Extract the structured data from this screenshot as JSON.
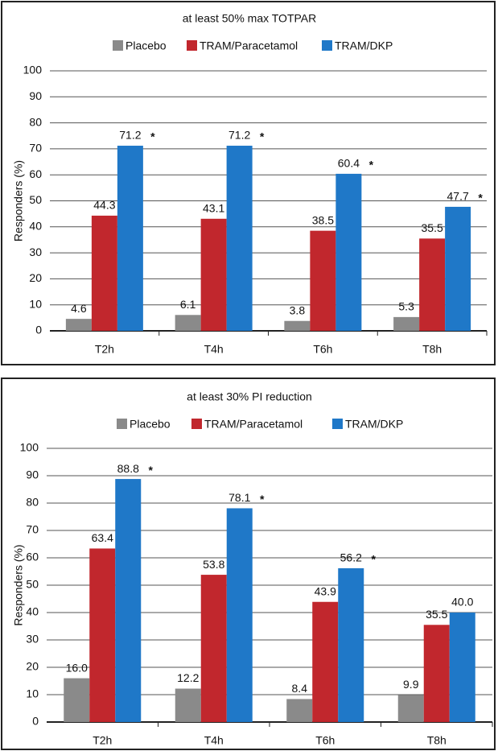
{
  "chart_data": [
    {
      "type": "bar",
      "title": "at least 50% max TOTPAR",
      "y_label": "Responders (%)",
      "categories": [
        "T2h",
        "T4h",
        "T6h",
        "T8h"
      ],
      "series": [
        {
          "name": "Placebo",
          "color": "#8a8a8a",
          "values": [
            4.6,
            6.1,
            3.8,
            5.3
          ]
        },
        {
          "name": "TRAM/Paracetamol",
          "color": "#c1272d",
          "values": [
            44.3,
            43.1,
            38.5,
            35.5
          ]
        },
        {
          "name": "TRAM/DKP",
          "color": "#1f78c8",
          "values": [
            71.2,
            71.2,
            60.4,
            47.7
          ],
          "significance": [
            "*",
            "*",
            "*",
            "*"
          ]
        }
      ],
      "ylim": [
        0,
        100
      ],
      "yticks": [
        0,
        10,
        20,
        30,
        40,
        50,
        60,
        70,
        80,
        90,
        100
      ],
      "grid": true
    },
    {
      "type": "bar",
      "title": "at least 30% PI reduction",
      "y_label": "Responders (%)",
      "categories": [
        "T2h",
        "T4h",
        "T6h",
        "T8h"
      ],
      "series": [
        {
          "name": "Placebo",
          "color": "#8a8a8a",
          "values": [
            16.0,
            12.2,
            8.4,
            9.9
          ],
          "value_labels": [
            "16.0",
            "12.2",
            "8.4",
            "9.9"
          ]
        },
        {
          "name": "TRAM/Paracetamol",
          "color": "#c1272d",
          "values": [
            63.4,
            53.8,
            43.9,
            35.5
          ]
        },
        {
          "name": "TRAM/DKP",
          "color": "#1f78c8",
          "values": [
            88.8,
            78.1,
            56.2,
            40.0
          ],
          "value_labels": [
            "88.8",
            "78.1",
            "56.2",
            "40.0"
          ],
          "significance": [
            "*",
            "*",
            "*",
            null
          ]
        }
      ],
      "ylim": [
        0,
        100
      ],
      "yticks": [
        0,
        10,
        20,
        30,
        40,
        50,
        60,
        70,
        80,
        90,
        100
      ],
      "grid": true
    }
  ]
}
